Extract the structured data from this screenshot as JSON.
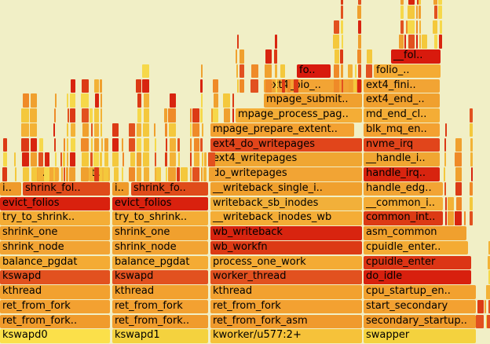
{
  "chart_data": {
    "type": "flamegraph",
    "title": "",
    "xlabel": "",
    "ylabel": "",
    "labeled_frames": [
      {
        "label": "kswapd0",
        "depth": 0,
        "start": 0,
        "width": 141,
        "color": "#fbe04a"
      },
      {
        "label": "ret_from_fork..",
        "depth": 1,
        "start": 0,
        "width": 141,
        "color": "#f09b2c"
      },
      {
        "label": "ret_from_fork",
        "depth": 2,
        "start": 0,
        "width": 141,
        "color": "#f3a131"
      },
      {
        "label": "kthread",
        "depth": 3,
        "start": 0,
        "width": 141,
        "color": "#f2a12f"
      },
      {
        "label": "kswapd",
        "depth": 4,
        "start": 0,
        "width": 141,
        "color": "#e2511f"
      },
      {
        "label": "balance_pgdat",
        "depth": 5,
        "start": 0,
        "width": 141,
        "color": "#f4ab34"
      },
      {
        "label": "shrink_node",
        "depth": 6,
        "start": 0,
        "width": 141,
        "color": "#f2a434"
      },
      {
        "label": "shrink_one",
        "depth": 7,
        "start": 0,
        "width": 141,
        "color": "#f0a02e"
      },
      {
        "label": "try_to_shrink..",
        "depth": 8,
        "start": 0,
        "width": 141,
        "color": "#f4ad36"
      },
      {
        "label": "evict_folios",
        "depth": 9,
        "start": 0,
        "width": 141,
        "color": "#d9210e"
      },
      {
        "label": "i..",
        "depth": 10,
        "start": 0,
        "width": 28,
        "color": "#ef9a2a"
      },
      {
        "label": "shrink_fol..",
        "depth": 10,
        "start": 29,
        "width": 112,
        "color": "#df4b1a"
      },
      {
        "label": "..",
        "depth": 11,
        "start": 46,
        "width": 30,
        "color": "#f4a934"
      },
      {
        "label": "t..",
        "depth": 11,
        "start": 113,
        "width": 28,
        "color": "#f2b83a"
      },
      {
        "label": "kswapd1",
        "depth": 0,
        "start": 143,
        "width": 123,
        "color": "#f4d23e"
      },
      {
        "label": "ret_from_fork..",
        "depth": 1,
        "start": 143,
        "width": 123,
        "color": "#f09b2c"
      },
      {
        "label": "ret_from_fork",
        "depth": 2,
        "start": 143,
        "width": 123,
        "color": "#f3a131"
      },
      {
        "label": "kthread",
        "depth": 3,
        "start": 143,
        "width": 123,
        "color": "#f2a12f"
      },
      {
        "label": "kswapd",
        "depth": 4,
        "start": 143,
        "width": 123,
        "color": "#e2511f"
      },
      {
        "label": "balance_pgdat",
        "depth": 5,
        "start": 143,
        "width": 123,
        "color": "#f4ab34"
      },
      {
        "label": "shrink_node",
        "depth": 6,
        "start": 143,
        "width": 123,
        "color": "#f2a434"
      },
      {
        "label": "shrink_one",
        "depth": 7,
        "start": 143,
        "width": 123,
        "color": "#f0a02e"
      },
      {
        "label": "try_to_shrink..",
        "depth": 8,
        "start": 143,
        "width": 123,
        "color": "#f4ad36"
      },
      {
        "label": "evict_folios",
        "depth": 9,
        "start": 143,
        "width": 123,
        "color": "#d9210e"
      },
      {
        "label": "i..",
        "depth": 10,
        "start": 143,
        "width": 22,
        "color": "#ef9a2a"
      },
      {
        "label": "shrink_fo..",
        "depth": 10,
        "start": 167,
        "width": 99,
        "color": "#df4b1a"
      },
      {
        "label": "kworker/u577:2+",
        "depth": 0,
        "start": 268,
        "width": 194,
        "color": "#f6c23a"
      },
      {
        "label": "ret_from_fork_asm",
        "depth": 1,
        "start": 268,
        "width": 194,
        "color": "#f09a2d"
      },
      {
        "label": "ret_from_fork",
        "depth": 2,
        "start": 268,
        "width": 194,
        "color": "#f3a131"
      },
      {
        "label": "kthread",
        "depth": 3,
        "start": 268,
        "width": 194,
        "color": "#f2a12f"
      },
      {
        "label": "worker_thread",
        "depth": 4,
        "start": 268,
        "width": 194,
        "color": "#e2511f"
      },
      {
        "label": "process_one_work",
        "depth": 5,
        "start": 268,
        "width": 194,
        "color": "#f4ab34"
      },
      {
        "label": "wb_workfn",
        "depth": 6,
        "start": 268,
        "width": 194,
        "color": "#dc3a15"
      },
      {
        "label": "wb_writeback",
        "depth": 7,
        "start": 268,
        "width": 194,
        "color": "#d8240f"
      },
      {
        "label": "__writeback_inodes_wb",
        "depth": 8,
        "start": 268,
        "width": 194,
        "color": "#f4ad36"
      },
      {
        "label": "writeback_sb_inodes",
        "depth": 9,
        "start": 268,
        "width": 194,
        "color": "#f2b03a"
      },
      {
        "label": "__writeback_single_i..",
        "depth": 10,
        "start": 268,
        "width": 194,
        "color": "#f0a02e"
      },
      {
        "label": "do_writepages",
        "depth": 11,
        "start": 268,
        "width": 194,
        "color": "#f2a434"
      },
      {
        "label": "ext4_writepages",
        "depth": 12,
        "start": 268,
        "width": 194,
        "color": "#f0a632"
      },
      {
        "label": "ext4_do_writepages",
        "depth": 13,
        "start": 268,
        "width": 194,
        "color": "#e1451b"
      },
      {
        "label": "mpage_prepare_extent..",
        "depth": 14,
        "start": 268,
        "width": 184,
        "color": "#f3a131"
      },
      {
        "label": "mpage_process_pag..",
        "depth": 15,
        "start": 300,
        "width": 162,
        "color": "#f4ad36"
      },
      {
        "label": "mpage_submit..",
        "depth": 16,
        "start": 336,
        "width": 126,
        "color": "#f0a02e"
      },
      {
        "label": "ext4_bio_..",
        "depth": 17,
        "start": 336,
        "width": 126,
        "color": "#f2a434"
      },
      {
        "label": "fo..",
        "depth": 18,
        "start": 378,
        "width": 44,
        "color": "#d81a0d"
      },
      {
        "label": "swapper",
        "depth": 0,
        "start": 463,
        "width": 144,
        "color": "#f4d23e"
      },
      {
        "label": "secondary_startup..",
        "depth": 1,
        "start": 463,
        "width": 144,
        "color": "#f09b2c"
      },
      {
        "label": "start_secondary",
        "depth": 2,
        "start": 463,
        "width": 144,
        "color": "#f3a131"
      },
      {
        "label": "cpu_startup_en..",
        "depth": 3,
        "start": 463,
        "width": 144,
        "color": "#f2a12f"
      },
      {
        "label": "do_idle",
        "depth": 4,
        "start": 463,
        "width": 138,
        "color": "#d8200e"
      },
      {
        "label": "cpuidle_enter",
        "depth": 5,
        "start": 463,
        "width": 138,
        "color": "#dc3515"
      },
      {
        "label": "cpuidle_enter..",
        "depth": 6,
        "start": 463,
        "width": 134,
        "color": "#f4ab34"
      },
      {
        "label": "asm_common",
        "depth": 7,
        "start": 463,
        "width": 132,
        "color": "#f0a02e"
      },
      {
        "label": "common_int..",
        "depth": 8,
        "start": 463,
        "width": 102,
        "color": "#dc3a15"
      },
      {
        "label": "__common_i..",
        "depth": 9,
        "start": 463,
        "width": 102,
        "color": "#f4ad36"
      },
      {
        "label": "handle_edg..",
        "depth": 10,
        "start": 463,
        "width": 102,
        "color": "#f2a434"
      },
      {
        "label": "handle_irq..",
        "depth": 11,
        "start": 463,
        "width": 98,
        "color": "#d8240f"
      },
      {
        "label": "__handle_i..",
        "depth": 12,
        "start": 463,
        "width": 98,
        "color": "#f0a632"
      },
      {
        "label": "nvme_irq",
        "depth": 13,
        "start": 463,
        "width": 98,
        "color": "#e1451b"
      },
      {
        "label": "blk_mq_en..",
        "depth": 14,
        "start": 463,
        "width": 98,
        "color": "#f3a131"
      },
      {
        "label": "md_end_cl..",
        "depth": 15,
        "start": 463,
        "width": 98,
        "color": "#f4ad36"
      },
      {
        "label": "ext4_end_..",
        "depth": 16,
        "start": 463,
        "width": 98,
        "color": "#f0a02e"
      },
      {
        "label": "ext4_fini..",
        "depth": 17,
        "start": 463,
        "width": 98,
        "color": "#f2a434"
      },
      {
        "label": "folio_..",
        "depth": 18,
        "start": 476,
        "width": 86,
        "color": "#f4ab34"
      },
      {
        "label": "__fol..",
        "depth": 19,
        "start": 498,
        "width": 64,
        "color": "#d81a0d"
      }
    ]
  }
}
